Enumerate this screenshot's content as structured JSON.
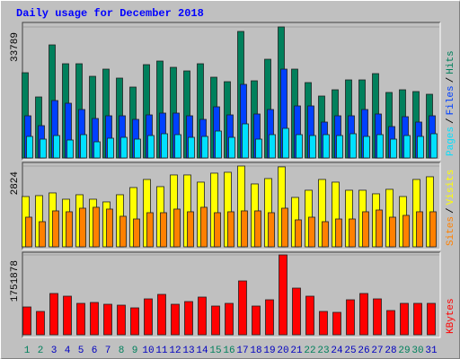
{
  "title": "Daily usage for December 2018",
  "legend_separator": "/",
  "chart_data": [
    {
      "type": "bar",
      "ylim": [
        0,
        33789
      ],
      "yticks": [
        33789
      ],
      "series": [
        {
          "name": "Hits",
          "color": "#00805c",
          "values": [
            21983,
            15735,
            29156,
            24297,
            24297,
            21057,
            22909,
            20595,
            18281,
            24066,
            24991,
            23371,
            22446,
            24297,
            20826,
            19669,
            32627,
            19900,
            25454,
            33789,
            22909,
            19438,
            15967,
            17586,
            20132,
            20132,
            21752,
            16892,
            17586,
            17124,
            16429
          ]
        },
        {
          "name": "Files",
          "color": "#0040ff",
          "values": [
            10876,
            8330,
            14810,
            14115,
            12496,
            10182,
            10876,
            10876,
            9950,
            11107,
            11570,
            11570,
            10876,
            9950,
            13190,
            11107,
            18975,
            11339,
            12496,
            22909,
            13421,
            13421,
            9256,
            10876,
            10876,
            12496,
            11339,
            8099,
            10644,
            9256,
            10876
          ]
        },
        {
          "name": "Pages",
          "color": "#00e0ff",
          "values": [
            5554,
            4859,
            5785,
            4628,
            6016,
            4165,
            5091,
            5322,
            4859,
            5785,
            6248,
            6016,
            5322,
            5554,
            6942,
            5322,
            8793,
            4859,
            6016,
            7636,
            6016,
            5785,
            6016,
            5785,
            6248,
            5554,
            6016,
            4859,
            5785,
            5554,
            6248
          ]
        }
      ]
    },
    {
      "type": "bar",
      "ylim": [
        0,
        2824
      ],
      "yticks": [
        2824
      ],
      "series": [
        {
          "name": "Visits",
          "color": "#ffff00",
          "values": [
            1758,
            1790,
            1884,
            1664,
            1821,
            1664,
            1570,
            1821,
            2072,
            2355,
            2104,
            2512,
            2512,
            2261,
            2575,
            2606,
            2824,
            2198,
            2386,
            2795,
            1727,
            1978,
            2355,
            2261,
            1978,
            1978,
            1853,
            2010,
            1758,
            2355,
            2449
          ]
        },
        {
          "name": "Sites",
          "color": "#ff8000",
          "values": [
            1036,
            879,
            1256,
            1225,
            1350,
            1382,
            1319,
            1068,
            973,
            1193,
            1193,
            1319,
            1225,
            1382,
            1193,
            1225,
            1256,
            1256,
            1193,
            1350,
            942,
            1036,
            879,
            973,
            973,
            1225,
            1287,
            1036,
            1099,
            1225,
            1225
          ]
        }
      ]
    },
    {
      "type": "bar",
      "ylim": [
        0,
        1751878
      ],
      "yticks": [
        1751878
      ],
      "categories": [
        "1",
        "2",
        "3",
        "4",
        "5",
        "6",
        "7",
        "8",
        "9",
        "10",
        "11",
        "12",
        "13",
        "14",
        "15",
        "16",
        "17",
        "18",
        "19",
        "20",
        "21",
        "22",
        "23",
        "24",
        "25",
        "26",
        "27",
        "28",
        "29",
        "30",
        "31"
      ],
      "category_colors": [
        "#00805c",
        "#00805c",
        "#0000c0",
        "#0000c0",
        "#0000c0",
        "#0000c0",
        "#0000c0",
        "#00805c",
        "#00805c",
        "#0000c0",
        "#0000c0",
        "#0000c0",
        "#0000c0",
        "#0000c0",
        "#00805c",
        "#00805c",
        "#0000c0",
        "#0000c0",
        "#0000c0",
        "#0000c0",
        "#0000c0",
        "#00805c",
        "#00805c",
        "#0000c0",
        "#0000c0",
        "#0000c0",
        "#0000c0",
        "#0000c0",
        "#00805c",
        "#00805c",
        "#0000c0"
      ],
      "series": [
        {
          "name": "KBytes",
          "color": "#ff0000",
          "values": [
            610204,
            511784,
            905464,
            846412,
            688940,
            708624,
            669256,
            649572,
            590520,
            787360,
            885780,
            669256,
            728308,
            826728,
            629888,
            688940,
            1181040,
            629888,
            767676,
            1751878,
            1023568,
            846412,
            511784,
            492100,
            767676,
            905464,
            787360,
            531468,
            688940,
            688940,
            688940
          ]
        }
      ]
    }
  ]
}
